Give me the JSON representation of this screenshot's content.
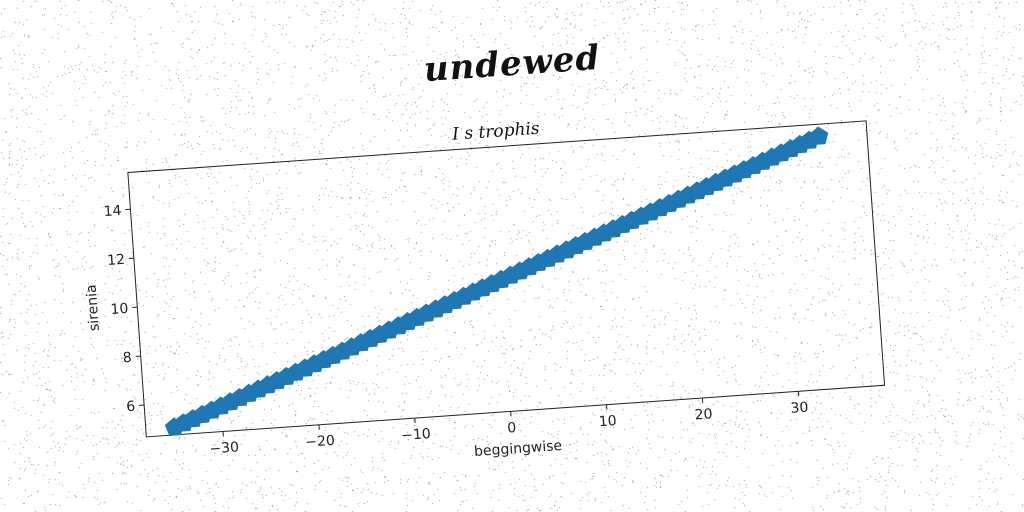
{
  "page": {
    "suptitle": "undewed"
  },
  "chart_data": {
    "type": "scatter",
    "title": "I s trophis",
    "xlabel": "beggingwise",
    "ylabel": "sirenia",
    "xlim": [
      -38,
      39
    ],
    "ylim": [
      4.7,
      15.5
    ],
    "xticks": [
      -30,
      -20,
      -10,
      0,
      10,
      20,
      30
    ],
    "yticks": [
      6,
      8,
      10,
      12,
      14
    ],
    "grid": false,
    "series": [
      {
        "color": "#1f77b4",
        "marker": "pentagon",
        "x_start": -35,
        "x_end": 34,
        "x_step": 1,
        "y_start": 5.0,
        "y_end": 15.0
      }
    ]
  }
}
